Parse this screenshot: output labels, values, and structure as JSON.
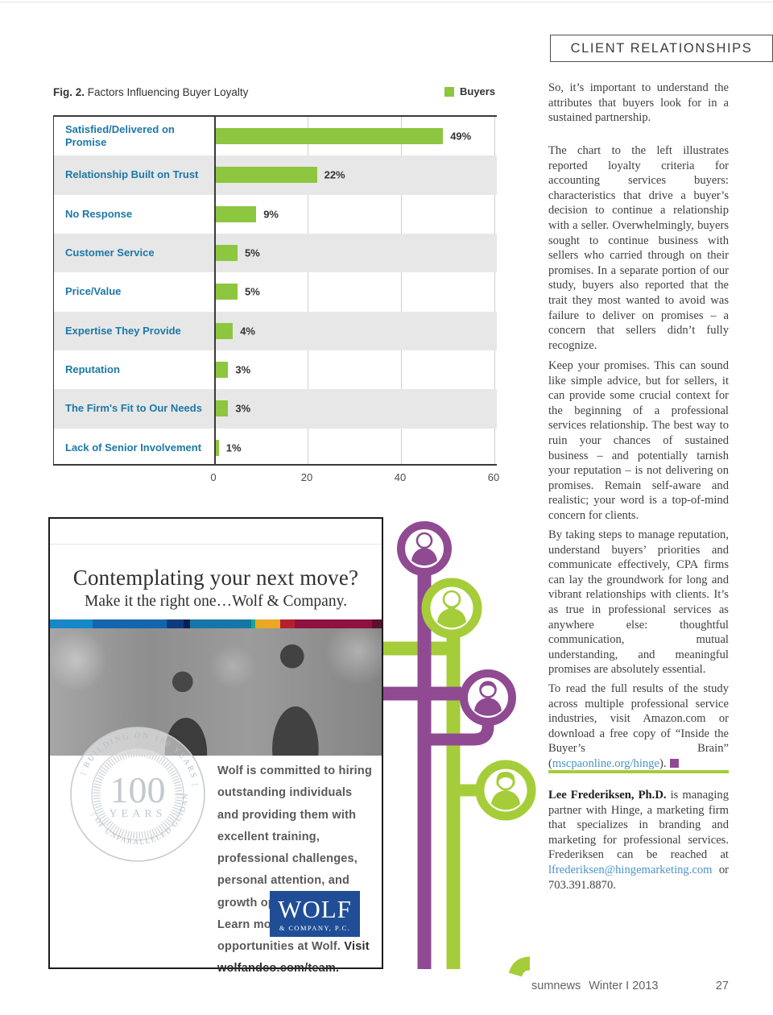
{
  "colors": {
    "chart_bar_green": "#8dc63f",
    "chart_label_blue": "#1c78a6",
    "network_purple": "#8f4a92",
    "network_green": "#a5cd39",
    "link_blue": "#4a93c8",
    "wolf_logo_blue": "#1f4e96",
    "end_mark_purple": "#8f4a92"
  },
  "header": {
    "tag": "CLIENT RELATIONSHIPS"
  },
  "chart_data": {
    "type": "bar",
    "orientation": "horizontal",
    "fig_label": "Fig. 2.",
    "title": " Factors Influencing Buyer Loyalty",
    "legend": {
      "label": "Buyers",
      "color": "#8dc63f"
    },
    "categories": [
      "Satisfied/Delivered on Promise",
      "Relationship Built on Trust",
      "No Response",
      "Customer Service",
      "Price/Value",
      "Expertise They Provide",
      "Reputation",
      "The Firm's Fit to Our Needs",
      "Lack of Senior Involvement"
    ],
    "values": [
      49,
      22,
      9,
      5,
      5,
      4,
      3,
      3,
      1
    ],
    "value_labels": [
      "49%",
      "22%",
      "9%",
      "5%",
      "5%",
      "4%",
      "3%",
      "3%",
      "1%"
    ],
    "xlim": [
      0,
      60
    ],
    "x_ticks": [
      0,
      20,
      40,
      60
    ],
    "bar_color": "#8dc63f",
    "grid": true,
    "legend_position": "top-right"
  },
  "article": {
    "p1": "So, it’s important to understand the attributes that buyers look for in a sustained partnership.",
    "p2": "The chart to the left illustrates reported loyalty criteria for accounting services buyers: characteristics that drive a buyer’s decision to continue a relationship with a seller. Overwhelmingly, buyers sought to continue business with sellers who carried through on their promises. In a separate portion of our study, buyers also reported that the trait they most wanted to avoid was failure to deliver on promises – a concern that sellers didn’t fully recognize.",
    "p3": "Keep your promises. This can sound like simple advice, but for sellers, it can provide some crucial context for the beginning of a professional services relationship. The best way to ruin your chances of sustained business – and potentially tarnish your reputation – is not delivering on promises.  Remain self-aware and realistic; your word is a top-of-mind concern for clients.",
    "p4": "By taking steps to manage reputation, understand buyers’ priorities and communicate effectively, CPA firms can lay the groundwork for long and vibrant relationships with clients. It’s as true in professional services as anywhere else: thoughtful communication, mutual understanding, and meaningful promises are absolutely essential.",
    "p5": {
      "before_link": "To read the full results of the study across multiple professional service industries, visit Amazon.com or download a free copy of “Inside the Buyer’s Brain” (",
      "link": "mscpaonline.org/hinge",
      "after_link": ")."
    },
    "bio": {
      "name": "Lee Frederiksen, Ph.D.",
      "before_link": " is managing partner with Hinge, a marketing firm that specializes in branding and marketing for professional services. Frederiksen can be reached at ",
      "link": "lfrederiksen@hingemarketing.com",
      "after_link": " or 703.391.8870."
    }
  },
  "ad": {
    "headline": "Contemplating your next move?",
    "subhead": "Make it the right one…Wolf & Company.",
    "stripe_colors": [
      "#1787c8",
      "#1565ae",
      "#0d3c7c",
      "#0a1f4e",
      "#1577a8",
      "#19a78e",
      "#eaa824",
      "#b5202e",
      "#8e1140",
      "#5e0e2e"
    ],
    "stripe_weights": [
      55,
      95,
      22,
      8,
      78,
      6,
      32,
      18,
      100,
      12
    ],
    "body": "Wolf is committed to hiring outstanding individuals and providing them with excellent training, professional challenges, personal attention, and growth opportunities. Learn more about opportunities at Wolf.",
    "visit_line": "Visit wolfandco.com/team.",
    "badge": {
      "arc_top": "| BUILDING ON 100 YEARS |",
      "arc_bottom": "| OF UNPARALLELED GUIDANCE |",
      "center_number": "100",
      "center_word": "YEARS"
    },
    "logo": {
      "name": "WOLF",
      "sub": "& COMPANY, P.C."
    }
  },
  "footer": {
    "magazine": "sumnews",
    "issue": "Winter I 2013",
    "page_number": "27"
  }
}
